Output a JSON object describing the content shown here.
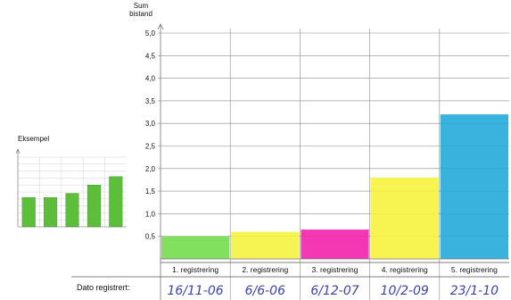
{
  "main_chart": {
    "ylabel": "Sum\nbistand",
    "row_label": "Dato registrert:"
  },
  "chart_data": [
    {
      "type": "bar",
      "categories": [
        "1. registrering",
        "2. registrering",
        "3. registrering",
        "4. registrering",
        "5. registrering"
      ],
      "values": [
        0.5,
        0.6,
        0.65,
        1.8,
        3.2
      ],
      "colors": [
        "#6fdc48",
        "#f4f23a",
        "#f21ca8",
        "#f6f23a",
        "#1ea8d8"
      ],
      "dates": [
        "16/11-06",
        "6/6-06",
        "6/12-07",
        "10/2-09",
        "23/1-10"
      ],
      "title": "",
      "xlabel": "",
      "ylabel": "Sum bistand",
      "ylim": [
        0,
        5
      ],
      "yticks": [
        "0,5",
        "1,0",
        "1,5",
        "2,0",
        "2,5",
        "3,0",
        "3,5",
        "4,0",
        "4,5",
        "5,0"
      ],
      "grid": true
    },
    {
      "type": "bar",
      "title": "Eksempel",
      "values": [
        2.1,
        2.1,
        2.4,
        3.0,
        3.6
      ],
      "ylim": [
        0,
        5
      ],
      "colors": [
        "#5cbf3a",
        "#5cbf3a",
        "#5cbf3a",
        "#5cbf3a",
        "#5cbf3a"
      ]
    }
  ]
}
